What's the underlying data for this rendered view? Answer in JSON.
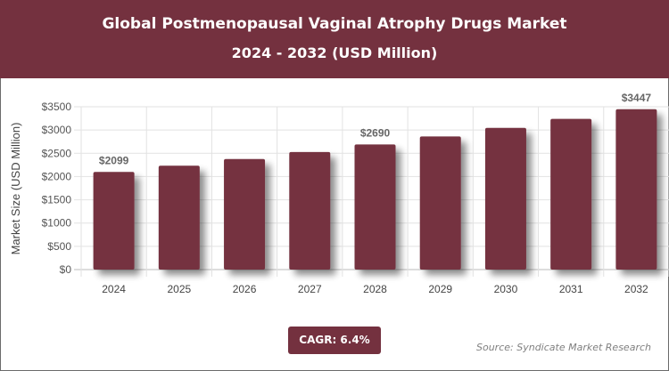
{
  "header": {
    "title": "Global Postmenopausal Vaginal Atrophy Drugs Market",
    "subtitle": "2024 - 2032 (USD Million)"
  },
  "chart_data": {
    "type": "bar",
    "title": "Global Postmenopausal Vaginal Atrophy Drugs Market",
    "subtitle": "2024 - 2032 (USD Million)",
    "xlabel": "",
    "ylabel": "Market Size (USD Million)",
    "categories": [
      "2024",
      "2025",
      "2026",
      "2027",
      "2028",
      "2029",
      "2030",
      "2031",
      "2032"
    ],
    "values": [
      2099,
      2233,
      2376,
      2528,
      2690,
      2862,
      3045,
      3240,
      3447
    ],
    "data_labels": {
      "0": "$2099",
      "4": "$2690",
      "8": "$3447"
    },
    "ylim": [
      0,
      3500
    ],
    "yticks": [
      "$0",
      "$500",
      "$1000",
      "$1500",
      "$2000",
      "$2500",
      "$3000",
      "$3500"
    ],
    "grid": true,
    "bar_color": "#74313f"
  },
  "footer": {
    "cagr": "CAGR: 6.4%",
    "source": "Source: Syndicate Market Research"
  }
}
